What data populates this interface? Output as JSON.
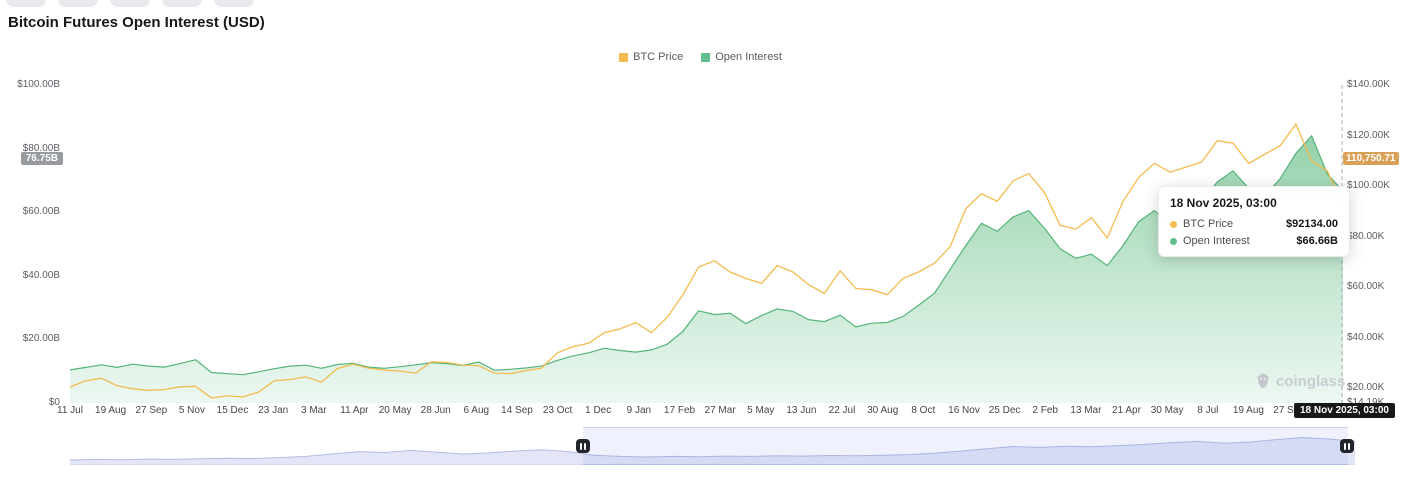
{
  "page": {
    "title": "Bitcoin Futures Open Interest (USD)"
  },
  "legend": [
    {
      "label": "BTC Price",
      "color": "#F3BB4F"
    },
    {
      "label": "Open Interest",
      "color": "#62BE8C"
    }
  ],
  "axes": {
    "left_ticks": [
      {
        "label": "$100.00B",
        "value": 100
      },
      {
        "label": "$80.00B",
        "value": 80
      },
      {
        "label": "$60.00B",
        "value": 60
      },
      {
        "label": "$40.00B",
        "value": 40
      },
      {
        "label": "$20.00B",
        "value": 20
      },
      {
        "label": "$0",
        "value": 0
      }
    ],
    "right_ticks": [
      {
        "label": "$140.00K",
        "value": 140
      },
      {
        "label": "$120.00K",
        "value": 120
      },
      {
        "label": "$100.00K",
        "value": 100
      },
      {
        "label": "$80.00K",
        "value": 80
      },
      {
        "label": "$60.00K",
        "value": 60
      },
      {
        "label": "$40.00K",
        "value": 40
      },
      {
        "label": "$20.00K",
        "value": 20
      },
      {
        "label": "$14.19K",
        "value": 14.19
      }
    ],
    "x_ticks": [
      "11 Jul",
      "19 Aug",
      "27 Sep",
      "5 Nov",
      "15 Dec",
      "23 Jan",
      "3 Mar",
      "11 Apr",
      "20 May",
      "28 Jun",
      "6 Aug",
      "14 Sep",
      "23 Oct",
      "1 Dec",
      "9 Jan",
      "17 Feb",
      "27 Mar",
      "5 May",
      "13 Jun",
      "22 Jul",
      "30 Aug",
      "8 Oct",
      "16 Nov",
      "25 Dec",
      "2 Feb",
      "13 Mar",
      "21 Apr",
      "30 May",
      "8 Jul",
      "19 Aug",
      "27 Sep"
    ]
  },
  "crosshair": {
    "left_badge": "76.75B",
    "right_badge": "110,750.71",
    "x_badge": "18 Nov 2025, 03:00"
  },
  "tooltip": {
    "title": "18 Nov 2025, 03:00",
    "rows": [
      {
        "label": "BTC Price",
        "value": "$92134.00",
        "color": "#F3BB4F"
      },
      {
        "label": "Open Interest",
        "value": "$66.66B",
        "color": "#62BE8C"
      }
    ]
  },
  "watermark": {
    "text": "coinglass"
  },
  "chart_data": {
    "type": "line",
    "title": "Bitcoin Futures Open Interest (USD)",
    "left_axis": {
      "unit": "USD billions",
      "range": [
        0,
        100
      ]
    },
    "right_axis": {
      "unit": "USD thousands",
      "range": [
        14.19,
        140
      ]
    },
    "x_range": [
      "11 Jul 2022",
      "18 Nov 2025"
    ],
    "last_point": {
      "date": "18 Nov 2025, 03:00",
      "btc_price_usd": 92134.0,
      "open_interest_usd_b": 66.66
    },
    "series": [
      {
        "name": "BTC Price",
        "axis": "right",
        "style": "line",
        "color": "#F3BB4F",
        "values": [
          20.5,
          23.0,
          24.0,
          21.0,
          19.8,
          19.2,
          19.5,
          20.6,
          20.8,
          16.2,
          17.0,
          16.6,
          18.5,
          23.0,
          23.5,
          24.5,
          22.4,
          27.8,
          29.5,
          28.0,
          27.2,
          26.8,
          26.0,
          30.5,
          30.2,
          29.2,
          29.0,
          26.0,
          25.8,
          27.0,
          28.0,
          34.0,
          36.5,
          37.8,
          42.0,
          43.5,
          46.0,
          42.0,
          48.0,
          57.0,
          68.0,
          70.5,
          66.0,
          63.5,
          61.5,
          68.5,
          66.0,
          61.0,
          57.5,
          66.5,
          59.5,
          59.0,
          57.0,
          63.5,
          66.0,
          69.5,
          76.0,
          91.0,
          97.0,
          94.0,
          102.0,
          105.0,
          97.5,
          84.5,
          83.0,
          87.5,
          79.5,
          94.0,
          103.5,
          109.0,
          105.5,
          107.5,
          109.5,
          118.0,
          117.0,
          109.0,
          112.5,
          116.0,
          124.5,
          110.0,
          106.0,
          92.134
        ]
      },
      {
        "name": "Open Interest",
        "axis": "left",
        "style": "area",
        "color": "#62BE8C",
        "values": [
          10.4,
          11.2,
          12.0,
          11.2,
          12.2,
          11.6,
          11.3,
          12.4,
          13.6,
          9.6,
          9.2,
          8.9,
          9.8,
          10.8,
          11.6,
          11.9,
          10.9,
          12.1,
          12.5,
          11.3,
          10.9,
          11.4,
          12.0,
          12.7,
          12.4,
          11.8,
          12.9,
          10.3,
          10.6,
          11.0,
          11.6,
          13.4,
          14.8,
          15.8,
          17.2,
          16.5,
          16.0,
          16.7,
          18.5,
          22.5,
          29.0,
          27.8,
          28.2,
          25.0,
          27.5,
          29.6,
          28.8,
          26.2,
          25.6,
          27.6,
          23.9,
          25.1,
          25.3,
          27.2,
          30.8,
          34.5,
          42.0,
          49.5,
          56.5,
          54.0,
          58.5,
          60.5,
          55.0,
          48.5,
          45.5,
          46.8,
          43.2,
          49.5,
          57.0,
          60.5,
          56.0,
          58.0,
          63.5,
          69.5,
          73.0,
          67.5,
          65.0,
          70.5,
          78.5,
          84.0,
          72.0,
          66.66
        ]
      }
    ],
    "navigator": {
      "selected": [
        0.399,
        0.994
      ],
      "values": [
        0.1,
        0.12,
        0.11,
        0.13,
        0.12,
        0.14,
        0.16,
        0.15,
        0.18,
        0.22,
        0.3,
        0.38,
        0.35,
        0.42,
        0.36,
        0.3,
        0.34,
        0.4,
        0.44,
        0.38,
        0.26,
        0.22,
        0.2,
        0.22,
        0.21,
        0.23,
        0.22,
        0.24,
        0.23,
        0.25,
        0.24,
        0.26,
        0.28,
        0.33,
        0.4,
        0.48,
        0.55,
        0.52,
        0.56,
        0.54,
        0.58,
        0.62,
        0.68,
        0.72,
        0.66,
        0.7,
        0.78,
        0.85,
        0.8,
        0.72
      ]
    }
  }
}
